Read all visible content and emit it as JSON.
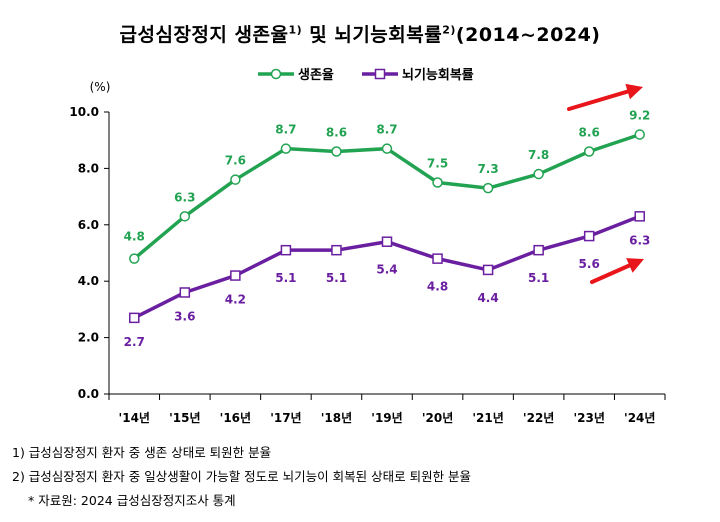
{
  "title": {
    "part1": "급성심장정지 생존율",
    "sup1": "1)",
    "part2": " 및 뇌기능회복률",
    "sup2": "2)",
    "part3": "(2014~2024)"
  },
  "colors": {
    "survival": "#22a352",
    "recovery": "#6a1fa0",
    "arrow": "#e8161b",
    "axis": "#000000"
  },
  "chart_data": {
    "type": "line",
    "unit_label": "(%)",
    "categories": [
      "'14년",
      "'15년",
      "'16년",
      "'17년",
      "'18년",
      "'19년",
      "'20년",
      "'21년",
      "'22년",
      "'23년",
      "'24년"
    ],
    "ylim": [
      0,
      10
    ],
    "yticks": [
      "0.0",
      "2.0",
      "4.0",
      "6.0",
      "8.0",
      "10.0"
    ],
    "grid": false,
    "legend_position": "top-center",
    "series": [
      {
        "name": "생존율",
        "marker": "circle",
        "values": [
          4.8,
          6.3,
          7.6,
          8.7,
          8.6,
          8.7,
          7.5,
          7.3,
          7.8,
          8.6,
          9.2
        ],
        "labels": [
          "4.8",
          "6.3",
          "7.6",
          "8.7",
          "8.6",
          "8.7",
          "7.5",
          "7.3",
          "7.8",
          "8.6",
          "9.2"
        ]
      },
      {
        "name": "뇌기능회복률",
        "marker": "square",
        "values": [
          2.7,
          3.6,
          4.2,
          5.1,
          5.1,
          5.4,
          4.8,
          4.4,
          5.1,
          5.6,
          6.3
        ],
        "labels": [
          "2.7",
          "3.6",
          "4.2",
          "5.1",
          "5.1",
          "5.4",
          "4.8",
          "4.4",
          "5.1",
          "5.6",
          "6.3"
        ]
      }
    ]
  },
  "notes": [
    "1)  급성심장정지 환자 중 생존 상태로 퇴원한 분율",
    "2)  급성심장정지 환자 중 일상생활이 가능할 정도로 뇌기능이 회복된 상태로 퇴원한 분율"
  ],
  "source": "* 자료원: 2024 급성심장정지조사 통계"
}
